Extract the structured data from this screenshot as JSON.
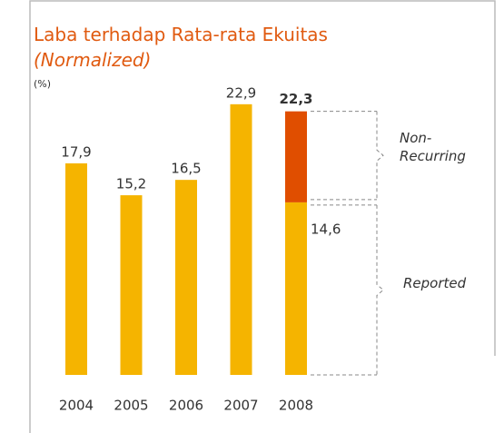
{
  "chart_data": {
    "type": "bar",
    "title": "Laba terhadap Rata-rata Ekuitas",
    "subtitle": "(Normalized)",
    "unit_label": "(%)",
    "categories": [
      "2004",
      "2005",
      "2006",
      "2007",
      "2008"
    ],
    "series": [
      {
        "name": "Reported",
        "color": "#f5b400",
        "values": [
          17.9,
          15.2,
          16.5,
          22.9,
          14.6
        ],
        "value_labels": [
          "17,9",
          "15,2",
          "16,5",
          "22,9",
          "14,6"
        ]
      },
      {
        "name": "Non-Recurring",
        "color": "#e04e00",
        "values": [
          null,
          null,
          null,
          null,
          7.7
        ]
      }
    ],
    "total": {
      "value": 22.3,
      "label": "22,3"
    },
    "ylim": [
      0,
      25
    ]
  }
}
